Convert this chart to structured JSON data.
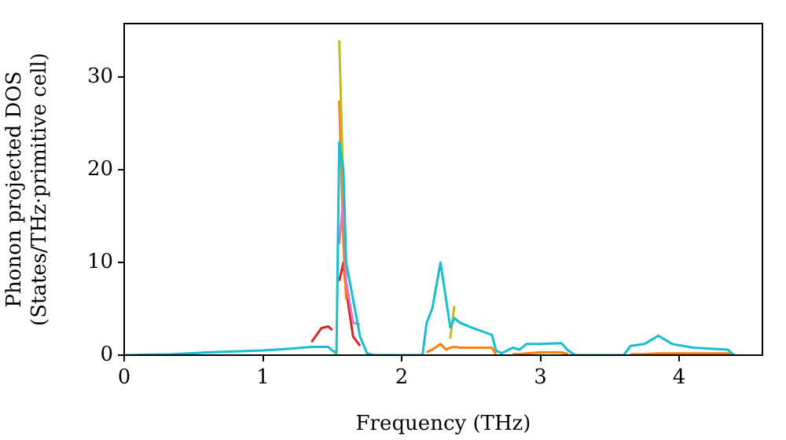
{
  "chart_data": {
    "type": "line",
    "xlabel": "Frequency (THz)",
    "ylabel": "Phonon projected DOS\n(States/THz·primitive cell)",
    "x": [
      0,
      0.35,
      0.6,
      0.8,
      1.0,
      1.2,
      1.35,
      1.42,
      1.47,
      1.5,
      1.53,
      1.55,
      1.58,
      1.6,
      1.65,
      1.7,
      1.75,
      1.8,
      2.15,
      2.18,
      2.22,
      2.28,
      2.32,
      2.35,
      2.38,
      2.42,
      2.5,
      2.65,
      2.68,
      2.72,
      2.8,
      2.85,
      2.9,
      3.0,
      3.15,
      3.2,
      3.25,
      3.6,
      3.65,
      3.75,
      3.85,
      3.95,
      4.1,
      4.35,
      4.38,
      4.4
    ],
    "series": [
      {
        "color": "#d62728",
        "values": [
          null,
          null,
          null,
          null,
          null,
          null,
          1.4,
          2.9,
          3.1,
          2.7,
          null,
          8,
          10,
          7,
          2,
          1,
          null,
          null,
          null,
          null,
          null,
          null,
          null,
          null,
          null,
          null,
          null,
          null,
          null,
          null,
          null,
          null,
          null,
          null,
          null,
          null,
          null,
          null,
          null,
          null,
          null,
          null,
          null,
          null,
          null,
          null
        ]
      },
      {
        "color": "#ff7f0e",
        "values": [
          null,
          null,
          null,
          null,
          null,
          null,
          null,
          null,
          null,
          null,
          null,
          27.5,
          12,
          6,
          null,
          null,
          null,
          null,
          null,
          0.3,
          0.6,
          1.2,
          0.6,
          0.8,
          0.9,
          0.8,
          0.8,
          0.8,
          0.1,
          null,
          0.1,
          0.1,
          0.2,
          0.3,
          0.3,
          0.1,
          null,
          null,
          0.1,
          0.1,
          0.2,
          0.2,
          0.2,
          0.2,
          0.1,
          null
        ]
      },
      {
        "color": "#e377c2",
        "values": [
          null,
          null,
          null,
          null,
          null,
          null,
          null,
          null,
          null,
          null,
          null,
          12,
          17,
          8,
          3.5,
          3.3,
          null,
          null,
          null,
          null,
          null,
          null,
          null,
          null,
          null,
          null,
          null,
          null,
          null,
          null,
          null,
          null,
          null,
          null,
          null,
          null,
          null,
          null,
          null,
          null,
          null,
          null,
          null,
          null,
          null,
          null
        ]
      },
      {
        "color": "#bcbd22",
        "values": [
          null,
          null,
          null,
          null,
          null,
          null,
          null,
          null,
          null,
          null,
          null,
          34,
          18,
          null,
          null,
          null,
          null,
          null,
          null,
          null,
          null,
          null,
          null,
          1.8,
          5.3,
          null,
          null,
          null,
          null,
          null,
          null,
          null,
          null,
          null,
          null,
          null,
          null,
          null,
          null,
          null,
          null,
          null,
          null,
          null,
          null,
          null
        ]
      },
      {
        "color": "#17becf",
        "values": [
          0,
          0.1,
          0.3,
          0.4,
          0.5,
          0.7,
          0.9,
          0.9,
          0.9,
          0.5,
          0.2,
          23,
          20,
          10,
          6,
          2,
          0.2,
          0,
          0,
          3.5,
          5,
          10,
          6,
          3,
          4,
          3.5,
          3,
          2.2,
          0.5,
          0.2,
          0.8,
          0.6,
          1.2,
          1.2,
          1.3,
          0.5,
          0,
          0,
          1,
          1.2,
          2.1,
          1.2,
          0.8,
          0.6,
          0.2,
          0
        ]
      }
    ],
    "xlim": [
      0,
      4.6
    ],
    "ylim": [
      0,
      35.8
    ],
    "xticks": [
      0,
      1,
      2,
      3,
      4
    ],
    "yticks": [
      0,
      10,
      20,
      30
    ],
    "grid": false,
    "legend": false,
    "marker": "none",
    "line_style": "solid"
  }
}
